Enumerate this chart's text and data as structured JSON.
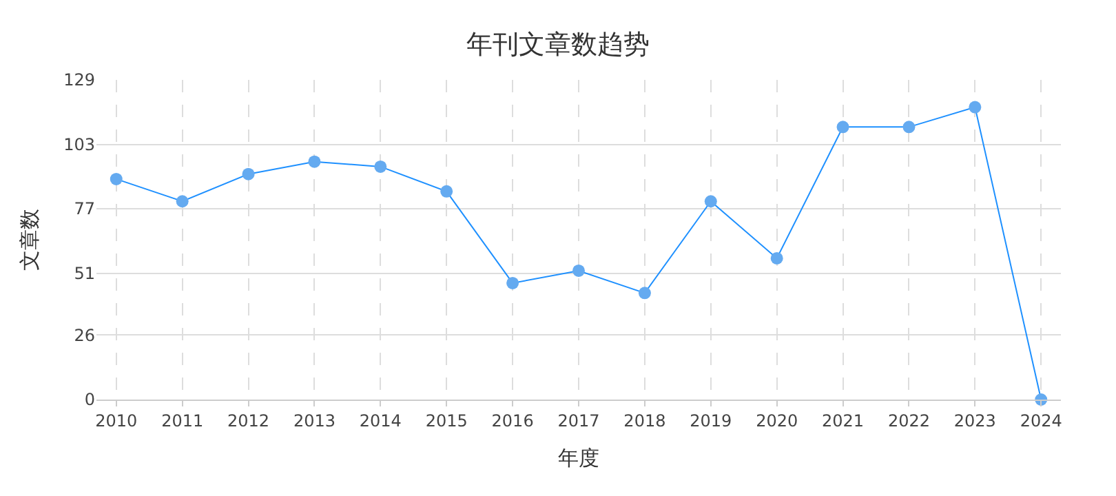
{
  "chart_data": {
    "type": "line",
    "title": "年刊文章数趋势",
    "xlabel": "年度",
    "ylabel": "文章数",
    "categories": [
      "2010",
      "2011",
      "2012",
      "2013",
      "2014",
      "2015",
      "2016",
      "2017",
      "2018",
      "2019",
      "2020",
      "2021",
      "2022",
      "2023",
      "2024"
    ],
    "series": [
      {
        "color": "#1e90ff",
        "values": [
          89,
          80,
          91,
          96,
          94,
          84,
          47,
          52,
          43,
          80,
          57,
          110,
          110,
          118,
          0
        ]
      }
    ],
    "ylim": [
      0,
      129
    ],
    "yticks": [
      0,
      26,
      51,
      77,
      103,
      129
    ],
    "grid": true,
    "marker": "circle",
    "line_style": "solid"
  }
}
